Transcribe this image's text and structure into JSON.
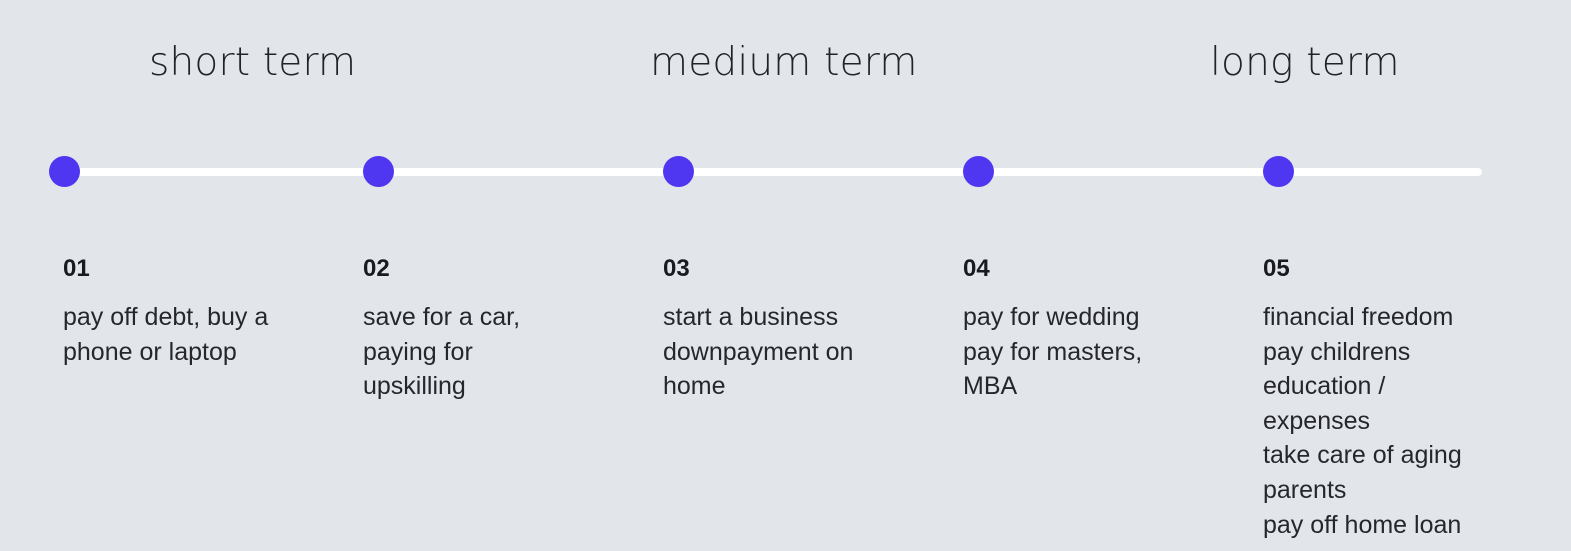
{
  "terms": {
    "short": "short term",
    "medium": "medium term",
    "long": "long term"
  },
  "colors": {
    "background": "#e2e6eb",
    "line": "#ffffff",
    "dot": "#4f36f0"
  },
  "steps": [
    {
      "number": "01",
      "text": "pay off debt, buy a\nphone or laptop"
    },
    {
      "number": "02",
      "text": "save for a car,\npaying for\nupskilling"
    },
    {
      "number": "03",
      "text": "start a business\ndownpayment on\nhome"
    },
    {
      "number": "04",
      "text": "pay for wedding\npay for masters,\nMBA"
    },
    {
      "number": "05",
      "text": "financial freedom\npay childrens\neducation /\nexpenses\ntake care of aging\nparents\npay off home loan"
    }
  ]
}
